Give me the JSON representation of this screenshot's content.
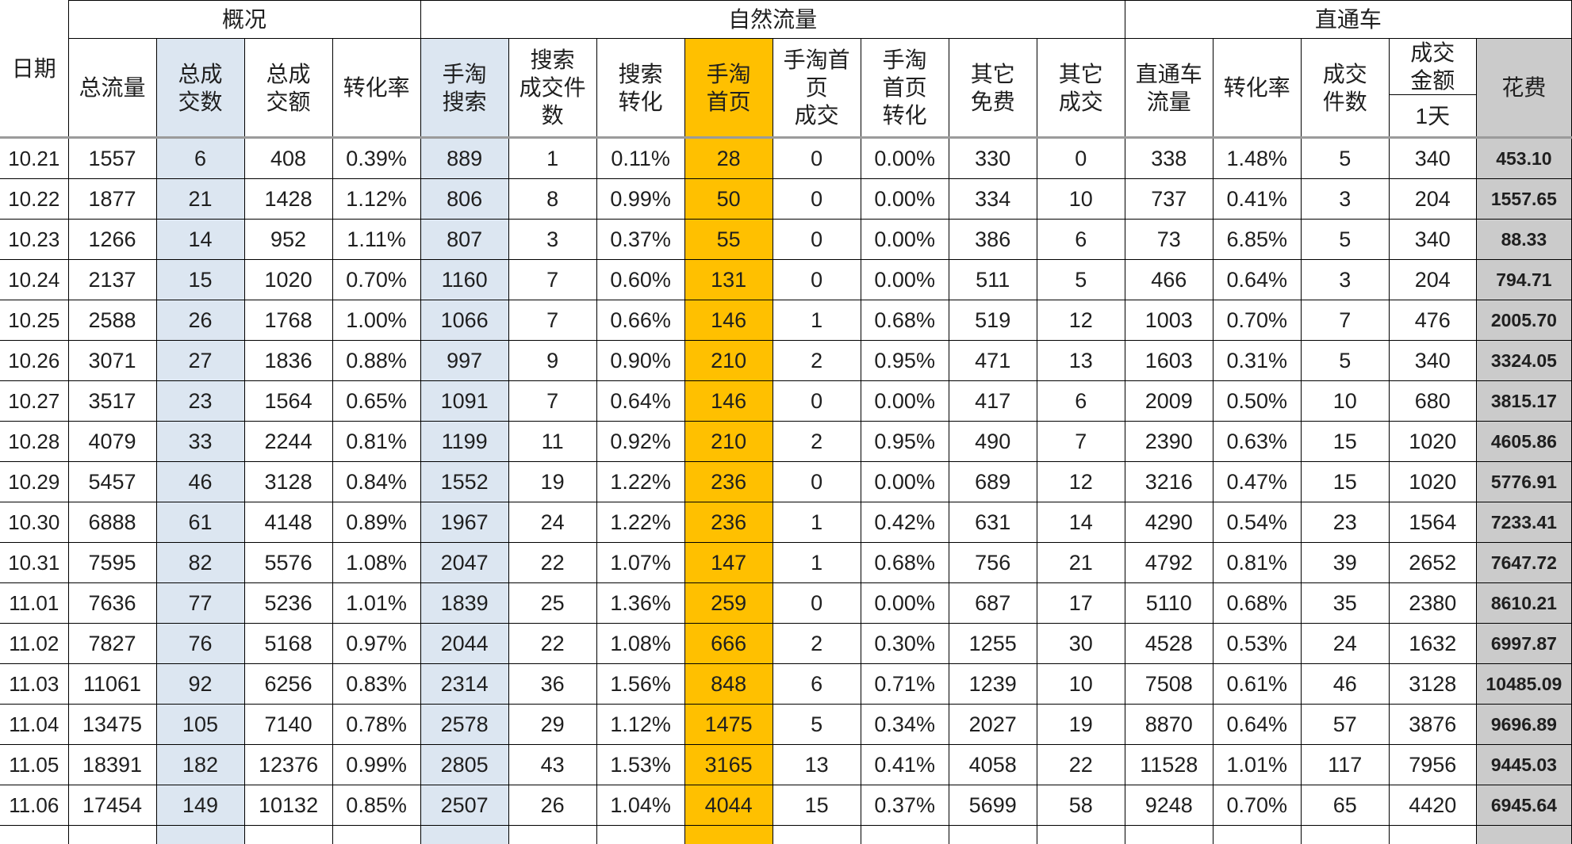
{
  "table": {
    "date_header": "日期",
    "groups": [
      {
        "label": "概况"
      },
      {
        "label": "自然流量"
      },
      {
        "label": "直通车"
      }
    ],
    "columns": [
      {
        "label": "总流量"
      },
      {
        "label": "总成\n交数",
        "highlight": "blue"
      },
      {
        "label": "总成\n交额"
      },
      {
        "label": "转化率"
      },
      {
        "label": "手淘\n搜索",
        "highlight": "blue"
      },
      {
        "label": "搜索\n成交件\n数"
      },
      {
        "label": "搜索\n转化"
      },
      {
        "label": "手淘\n首页",
        "highlight": "orange"
      },
      {
        "label": "手淘首\n页\n成交"
      },
      {
        "label": "手淘\n首页\n转化"
      },
      {
        "label": "其它\n免费"
      },
      {
        "label": "其它\n成交"
      },
      {
        "label": "直通车\n流量"
      },
      {
        "label": "转化率"
      },
      {
        "label": "成交\n件数"
      },
      {
        "label": "成交\n金额",
        "sub": "1天"
      },
      {
        "label": "花费",
        "highlight": "gray"
      }
    ],
    "rows": [
      [
        "10.21",
        "1557",
        "6",
        "408",
        "0.39%",
        "889",
        "1",
        "0.11%",
        "28",
        "0",
        "0.00%",
        "330",
        "0",
        "338",
        "1.48%",
        "5",
        "340",
        "453.10"
      ],
      [
        "10.22",
        "1877",
        "21",
        "1428",
        "1.12%",
        "806",
        "8",
        "0.99%",
        "50",
        "0",
        "0.00%",
        "334",
        "10",
        "737",
        "0.41%",
        "3",
        "204",
        "1557.65"
      ],
      [
        "10.23",
        "1266",
        "14",
        "952",
        "1.11%",
        "807",
        "3",
        "0.37%",
        "55",
        "0",
        "0.00%",
        "386",
        "6",
        "73",
        "6.85%",
        "5",
        "340",
        "88.33"
      ],
      [
        "10.24",
        "2137",
        "15",
        "1020",
        "0.70%",
        "1160",
        "7",
        "0.60%",
        "131",
        "0",
        "0.00%",
        "511",
        "5",
        "466",
        "0.64%",
        "3",
        "204",
        "794.71"
      ],
      [
        "10.25",
        "2588",
        "26",
        "1768",
        "1.00%",
        "1066",
        "7",
        "0.66%",
        "146",
        "1",
        "0.68%",
        "519",
        "12",
        "1003",
        "0.70%",
        "7",
        "476",
        "2005.70"
      ],
      [
        "10.26",
        "3071",
        "27",
        "1836",
        "0.88%",
        "997",
        "9",
        "0.90%",
        "210",
        "2",
        "0.95%",
        "471",
        "13",
        "1603",
        "0.31%",
        "5",
        "340",
        "3324.05"
      ],
      [
        "10.27",
        "3517",
        "23",
        "1564",
        "0.65%",
        "1091",
        "7",
        "0.64%",
        "146",
        "0",
        "0.00%",
        "417",
        "6",
        "2009",
        "0.50%",
        "10",
        "680",
        "3815.17"
      ],
      [
        "10.28",
        "4079",
        "33",
        "2244",
        "0.81%",
        "1199",
        "11",
        "0.92%",
        "210",
        "2",
        "0.95%",
        "490",
        "7",
        "2390",
        "0.63%",
        "15",
        "1020",
        "4605.86"
      ],
      [
        "10.29",
        "5457",
        "46",
        "3128",
        "0.84%",
        "1552",
        "19",
        "1.22%",
        "236",
        "0",
        "0.00%",
        "689",
        "12",
        "3216",
        "0.47%",
        "15",
        "1020",
        "5776.91"
      ],
      [
        "10.30",
        "6888",
        "61",
        "4148",
        "0.89%",
        "1967",
        "24",
        "1.22%",
        "236",
        "1",
        "0.42%",
        "631",
        "14",
        "4290",
        "0.54%",
        "23",
        "1564",
        "7233.41"
      ],
      [
        "10.31",
        "7595",
        "82",
        "5576",
        "1.08%",
        "2047",
        "22",
        "1.07%",
        "147",
        "1",
        "0.68%",
        "756",
        "21",
        "4792",
        "0.81%",
        "39",
        "2652",
        "7647.72"
      ],
      [
        "11.01",
        "7636",
        "77",
        "5236",
        "1.01%",
        "1839",
        "25",
        "1.36%",
        "259",
        "0",
        "0.00%",
        "687",
        "17",
        "5110",
        "0.68%",
        "35",
        "2380",
        "8610.21"
      ],
      [
        "11.02",
        "7827",
        "76",
        "5168",
        "0.97%",
        "2044",
        "22",
        "1.08%",
        "666",
        "2",
        "0.30%",
        "1255",
        "30",
        "4528",
        "0.53%",
        "24",
        "1632",
        "6997.87"
      ],
      [
        "11.03",
        "11061",
        "92",
        "6256",
        "0.83%",
        "2314",
        "36",
        "1.56%",
        "848",
        "6",
        "0.71%",
        "1239",
        "10",
        "7508",
        "0.61%",
        "46",
        "3128",
        "10485.09"
      ],
      [
        "11.04",
        "13475",
        "105",
        "7140",
        "0.78%",
        "2578",
        "29",
        "1.12%",
        "1475",
        "5",
        "0.34%",
        "2027",
        "19",
        "8870",
        "0.64%",
        "57",
        "3876",
        "9696.89"
      ],
      [
        "11.05",
        "18391",
        "182",
        "12376",
        "0.99%",
        "2805",
        "43",
        "1.53%",
        "3165",
        "13",
        "0.41%",
        "4058",
        "22",
        "11528",
        "1.01%",
        "117",
        "7956",
        "9445.03"
      ],
      [
        "11.06",
        "17454",
        "149",
        "10132",
        "0.85%",
        "2507",
        "26",
        "1.04%",
        "4044",
        "15",
        "0.37%",
        "5699",
        "58",
        "9248",
        "0.70%",
        "65",
        "4420",
        "6945.64"
      ]
    ]
  },
  "colors": {
    "highlight_blue": "#dce6f1",
    "highlight_orange": "#ffc000",
    "highlight_gray": "#cbcbcb",
    "grid_line": "#000000",
    "header_divider": "#9b9b9b",
    "text": "#1f1f1f"
  }
}
